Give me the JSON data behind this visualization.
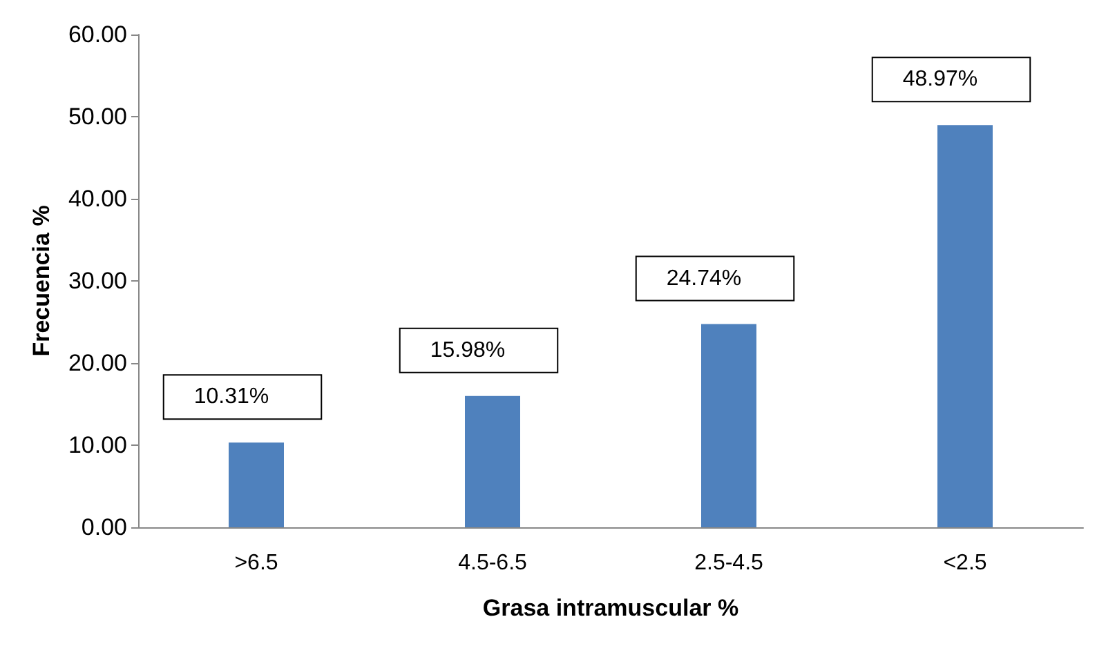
{
  "chart_data": {
    "type": "bar",
    "xlabel": "Grasa intramuscular %",
    "ylabel": "Frecuencia %",
    "categories": [
      ">6.5",
      "4.5-6.5",
      "2.5-4.5",
      "<2.5"
    ],
    "values": [
      10.31,
      15.98,
      24.74,
      48.97
    ],
    "color": "#4f81bd",
    "value_labels": [
      "10.31%",
      "15.98%",
      "24.74%",
      "48.97%"
    ],
    "ylim": [
      0,
      60
    ],
    "yticks": [
      {
        "value": 0,
        "label": "0.00"
      },
      {
        "value": 10,
        "label": "10.00"
      },
      {
        "value": 20,
        "label": "20.00"
      },
      {
        "value": 30,
        "label": "30.00"
      },
      {
        "value": 40,
        "label": "40.00"
      },
      {
        "value": 50,
        "label": "50.00"
      },
      {
        "value": 60,
        "label": "60.00"
      }
    ],
    "grid": false
  }
}
